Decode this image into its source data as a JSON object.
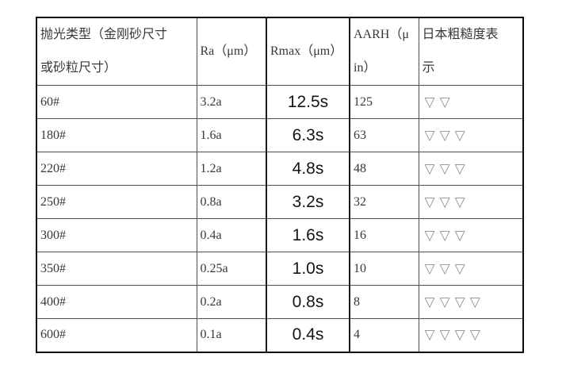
{
  "table": {
    "columns": [
      {
        "key": "type",
        "label": "抛光类型（金刚砂尺寸\n或砂粒尺寸）"
      },
      {
        "key": "ra",
        "label": "Ra（μm）"
      },
      {
        "key": "rmax",
        "label": "Rmax（μm）"
      },
      {
        "key": "aarh",
        "label": "AARH（μ\nin）"
      },
      {
        "key": "jis",
        "label": "日本粗糙度表\n示"
      }
    ],
    "rows": [
      {
        "type": "60#",
        "ra": "3.2a",
        "rmax": "12.5s",
        "aarh": "125",
        "jis": "▽▽"
      },
      {
        "type": "180#",
        "ra": "1.6a",
        "rmax": "6.3s",
        "aarh": "63",
        "jis": "▽▽▽"
      },
      {
        "type": "220#",
        "ra": "1.2a",
        "rmax": "4.8s",
        "aarh": "48",
        "jis": "▽▽▽"
      },
      {
        "type": "250#",
        "ra": "0.8a",
        "rmax": "3.2s",
        "aarh": "32",
        "jis": "▽▽▽"
      },
      {
        "type": "300#",
        "ra": "0.4a",
        "rmax": "1.6s",
        "aarh": "16",
        "jis": "▽▽▽"
      },
      {
        "type": "350#",
        "ra": "0.25a",
        "rmax": "1.0s",
        "aarh": "10",
        "jis": "▽▽▽"
      },
      {
        "type": "400#",
        "ra": "0.2a",
        "rmax": "0.8s",
        "aarh": "8",
        "jis": "▽▽▽▽"
      },
      {
        "type": "600#",
        "ra": "0.1a",
        "rmax": "0.4s",
        "aarh": "4",
        "jis": "▽▽▽▽"
      }
    ],
    "colors": {
      "outer_border": "#0a0a0a",
      "inner_border": "#4f4f4f",
      "rmax_border": "#1c1c1c",
      "text": "#383838",
      "rmax_text": "#141414",
      "triangle": "#8a909a"
    }
  }
}
